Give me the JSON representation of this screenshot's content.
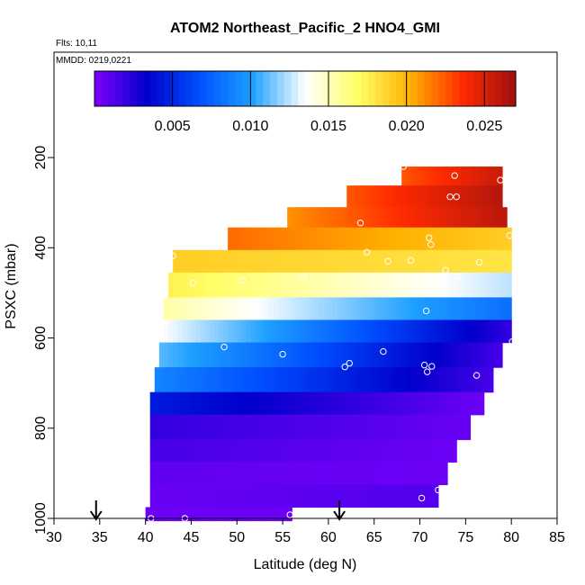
{
  "chart_data": {
    "type": "heatmap",
    "title": "ATOM2 Northeast_Pacific_2 HNO4_GMI",
    "flights_label": "Flts: 10,11",
    "date_label": "MMDD: 0219,0221",
    "xlabel": "Latitude (deg N)",
    "ylabel": "PSXC (mbar)",
    "xlim": [
      30,
      85
    ],
    "ylim": [
      1000,
      0
    ],
    "x_ticks": [
      30,
      35,
      40,
      45,
      50,
      55,
      60,
      65,
      70,
      75,
      80,
      85
    ],
    "y_ticks": [
      200,
      400,
      600,
      800,
      1000
    ],
    "colorbar": {
      "range": [
        0,
        0.027
      ],
      "ticks": [
        "0.005",
        "0.010",
        "0.015",
        "0.020",
        "0.025"
      ],
      "tick_values": [
        0.005,
        0.01,
        0.015,
        0.02,
        0.025
      ],
      "colors": [
        "#7f00ff",
        "#0000cc",
        "#0050ff",
        "#1ea0ff",
        "#ffffff",
        "#ffff66",
        "#ffb000",
        "#ff2a00",
        "#9e1010"
      ]
    },
    "arrows_lat": [
      34.6,
      61.2
    ],
    "layers": [
      {
        "p_top": 220,
        "p_bot": 262,
        "segments": [
          [
            68,
            79,
            0.0225,
            0.0255
          ]
        ]
      },
      {
        "p_top": 262,
        "p_bot": 310,
        "segments": [
          [
            62,
            79,
            0.0225,
            0.0262
          ]
        ]
      },
      {
        "p_top": 310,
        "p_bot": 355,
        "segments": [
          [
            55.5,
            79.5,
            0.021,
            0.026
          ]
        ]
      },
      {
        "p_top": 355,
        "p_bot": 405,
        "segments": [
          [
            49,
            80,
            0.022,
            0.019
          ]
        ]
      },
      {
        "p_top": 405,
        "p_bot": 455,
        "segments": [
          [
            43,
            80,
            0.019,
            0.018
          ]
        ]
      },
      {
        "p_top": 455,
        "p_bot": 510,
        "segments": [
          [
            42.5,
            80,
            0.0175,
            0.0125
          ]
        ]
      },
      {
        "p_top": 510,
        "p_bot": 560,
        "segments": [
          [
            42,
            80,
            0.0155,
            0.008
          ]
        ]
      },
      {
        "p_top": 560,
        "p_bot": 610,
        "segments": [
          [
            42,
            80,
            0.0135,
            0.002
          ]
        ]
      },
      {
        "p_top": 610,
        "p_bot": 665,
        "segments": [
          [
            41.5,
            79,
            0.011,
            0.0015
          ]
        ]
      },
      {
        "p_top": 665,
        "p_bot": 720,
        "segments": [
          [
            41,
            78,
            0.009,
            0.0015
          ]
        ]
      },
      {
        "p_top": 720,
        "p_bot": 770,
        "segments": [
          [
            40.5,
            77,
            0.0045,
            0.0005
          ]
        ]
      },
      {
        "p_top": 770,
        "p_bot": 825,
        "segments": [
          [
            40.5,
            75.5,
            0.002,
            0.0006
          ]
        ]
      },
      {
        "p_top": 825,
        "p_bot": 875,
        "segments": [
          [
            40.5,
            74,
            0.0015,
            0.0005
          ]
        ]
      },
      {
        "p_top": 875,
        "p_bot": 925,
        "segments": [
          [
            40.5,
            73,
            0.0008,
            0.0005
          ]
        ]
      },
      {
        "p_top": 925,
        "p_bot": 975,
        "segments": [
          [
            40.5,
            72,
            0.0006,
            0.0012
          ]
        ]
      },
      {
        "p_top": 975,
        "p_bot": 1005,
        "segments": [
          [
            40,
            56,
            0.0005,
            0.0005
          ]
        ]
      }
    ],
    "obs_points": [
      {
        "lat": 68.2,
        "p": 220
      },
      {
        "lat": 73.8,
        "p": 240
      },
      {
        "lat": 78.8,
        "p": 250
      },
      {
        "lat": 73.3,
        "p": 287
      },
      {
        "lat": 74,
        "p": 287
      },
      {
        "lat": 63.5,
        "p": 345
      },
      {
        "lat": 71,
        "p": 378
      },
      {
        "lat": 71.2,
        "p": 393
      },
      {
        "lat": 79.8,
        "p": 373
      },
      {
        "lat": 64.2,
        "p": 410
      },
      {
        "lat": 66.5,
        "p": 430
      },
      {
        "lat": 43,
        "p": 418
      },
      {
        "lat": 69,
        "p": 428
      },
      {
        "lat": 72.8,
        "p": 450
      },
      {
        "lat": 74.2,
        "p": 464
      },
      {
        "lat": 76.5,
        "p": 432
      },
      {
        "lat": 57.2,
        "p": 463
      },
      {
        "lat": 50.6,
        "p": 472
      },
      {
        "lat": 45.2,
        "p": 478
      },
      {
        "lat": 70.7,
        "p": 540
      },
      {
        "lat": 48.6,
        "p": 620
      },
      {
        "lat": 55,
        "p": 636
      },
      {
        "lat": 66,
        "p": 630
      },
      {
        "lat": 62.3,
        "p": 656
      },
      {
        "lat": 61.8,
        "p": 664
      },
      {
        "lat": 70.5,
        "p": 660
      },
      {
        "lat": 71.3,
        "p": 663
      },
      {
        "lat": 70.8,
        "p": 675
      },
      {
        "lat": 76.2,
        "p": 683
      },
      {
        "lat": 80.1,
        "p": 608
      },
      {
        "lat": 40,
        "p": 722
      },
      {
        "lat": 72,
        "p": 937
      },
      {
        "lat": 70.2,
        "p": 955
      },
      {
        "lat": 40.6,
        "p": 1000
      },
      {
        "lat": 44.3,
        "p": 1000
      },
      {
        "lat": 55.8,
        "p": 992
      }
    ]
  }
}
